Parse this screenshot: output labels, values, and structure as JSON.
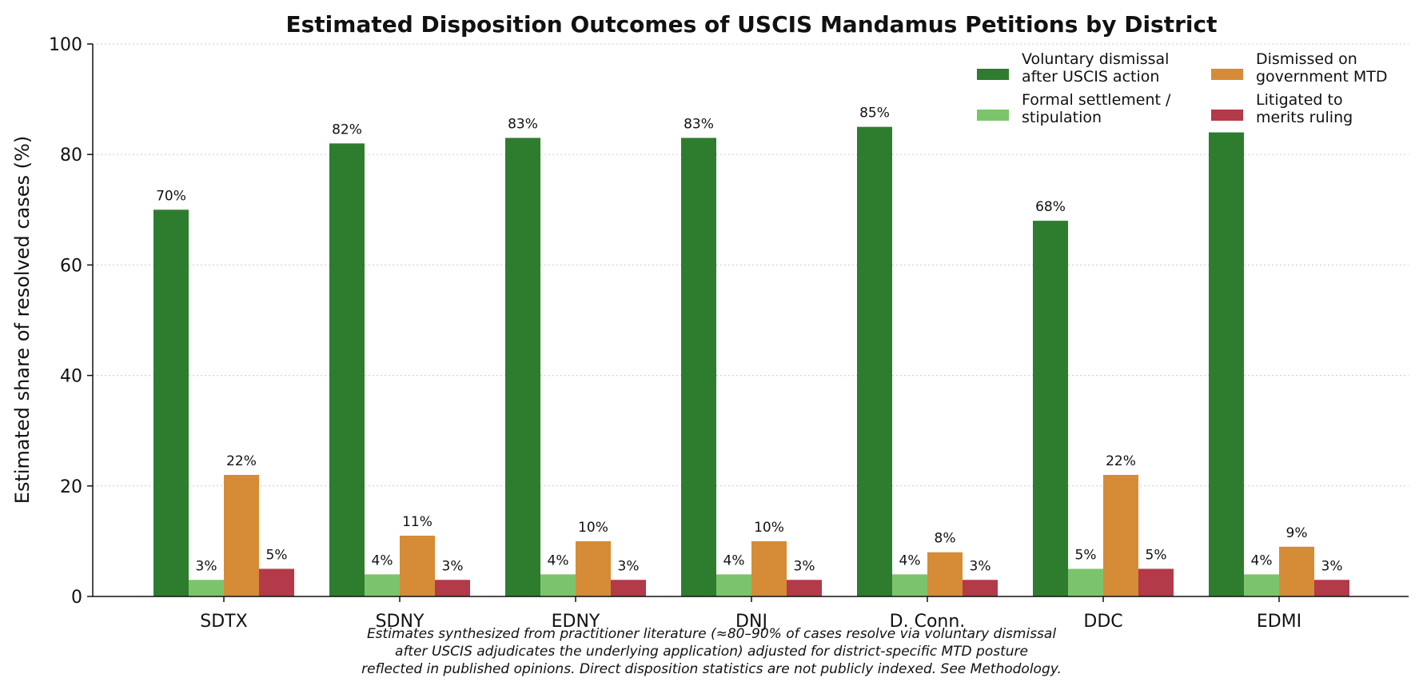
{
  "chart_data": {
    "type": "bar",
    "title": "Estimated Disposition Outcomes of USCIS Mandamus Petitions by District",
    "xlabel": "",
    "ylabel": "Estimated share of resolved cases (%)",
    "ylim": [
      0,
      100
    ],
    "yticks": [
      0,
      20,
      40,
      60,
      80,
      100
    ],
    "grid": "horizontal dotted",
    "legend_position": "top-right",
    "value_label_suffix": "%",
    "categories": [
      "SDTX",
      "SDNY",
      "EDNY",
      "DNJ",
      "D. Conn.",
      "DDC",
      "EDMI"
    ],
    "series": [
      {
        "name": "Voluntary dismissal after USCIS action",
        "legend_lines": [
          "Voluntary dismissal",
          "after USCIS action"
        ],
        "color": "#2e7d2e",
        "values": [
          70,
          82,
          83,
          83,
          85,
          68,
          84
        ],
        "labels": [
          "70%",
          "82%",
          "83%",
          "83%",
          "85%",
          "68%",
          ""
        ]
      },
      {
        "name": "Formal settlement / stipulation",
        "legend_lines": [
          "Formal settlement /",
          "stipulation"
        ],
        "color": "#7cc46c",
        "values": [
          3,
          4,
          4,
          4,
          4,
          5,
          4
        ],
        "labels": [
          "3%",
          "4%",
          "4%",
          "4%",
          "4%",
          "5%",
          "4%"
        ]
      },
      {
        "name": "Dismissed on government MTD",
        "legend_lines": [
          "Dismissed on",
          "government MTD"
        ],
        "color": "#d68b37",
        "values": [
          22,
          11,
          10,
          10,
          8,
          22,
          9
        ],
        "labels": [
          "22%",
          "11%",
          "10%",
          "10%",
          "8%",
          "22%",
          "9%"
        ]
      },
      {
        "name": "Litigated to merits ruling",
        "legend_lines": [
          "Litigated to",
          "merits ruling"
        ],
        "color": "#b33a48",
        "values": [
          5,
          3,
          3,
          3,
          3,
          5,
          3
        ],
        "labels": [
          "5%",
          "3%",
          "3%",
          "3%",
          "3%",
          "5%",
          "3%"
        ]
      }
    ],
    "footnote_lines": [
      "Estimates synthesized from practitioner literature (≈80–90% of cases resolve via voluntary dismissal",
      "after USCIS adjudicates the underlying application) adjusted for district-specific MTD posture",
      "reflected in published opinions. Direct disposition statistics are not publicly indexed. See Methodology."
    ]
  }
}
